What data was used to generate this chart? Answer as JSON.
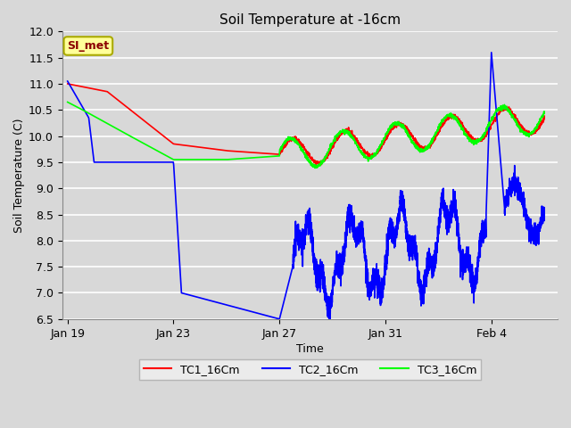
{
  "title": "Soil Temperature at -16cm",
  "xlabel": "Time",
  "ylabel": "Soil Temperature (C)",
  "ylim": [
    6.5,
    12.0
  ],
  "yticks": [
    6.5,
    7.0,
    7.5,
    8.0,
    8.5,
    9.0,
    9.5,
    10.0,
    10.5,
    11.0,
    11.5,
    12.0
  ],
  "background_color": "#d8d8d8",
  "plot_bg_color": "#d8d8d8",
  "grid_color": "#ffffff",
  "legend_labels": [
    "TC1_16Cm",
    "TC2_16Cm",
    "TC3_16Cm"
  ],
  "annotation_text": "SI_met",
  "annotation_color": "#8b0000",
  "annotation_bg": "#ffff99",
  "annotation_border": "#aaaa00",
  "x_tick_labels": [
    "Jan 19",
    "Jan 23",
    "Jan 27",
    "Jan 31",
    "Feb 4"
  ],
  "x_tick_positions": [
    0,
    4,
    8,
    12,
    16
  ]
}
